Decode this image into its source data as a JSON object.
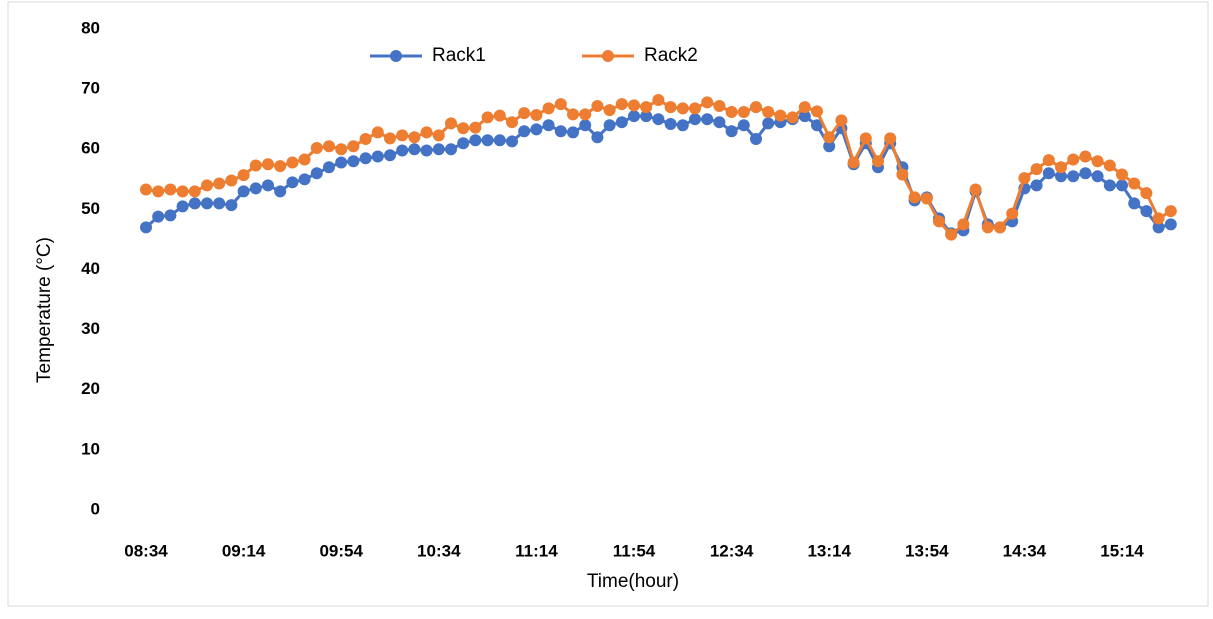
{
  "chart_data": {
    "type": "line",
    "y_label": "Temperature (°C)",
    "x_label": "Time(hour)",
    "categories": [
      "08:34",
      null,
      null,
      null,
      null,
      null,
      null,
      null,
      "09:14",
      null,
      null,
      null,
      null,
      null,
      null,
      null,
      "09:54",
      null,
      null,
      null,
      null,
      null,
      null,
      null,
      "10:34",
      null,
      null,
      null,
      null,
      null,
      null,
      null,
      "11:14",
      null,
      null,
      null,
      null,
      null,
      null,
      null,
      "11:54",
      null,
      null,
      null,
      null,
      null,
      null,
      null,
      "12:34",
      null,
      null,
      null,
      null,
      null,
      null,
      null,
      "13:14",
      null,
      null,
      null,
      null,
      null,
      null,
      null,
      "13:54",
      null,
      null,
      null,
      null,
      null,
      null,
      null,
      "14:34",
      null,
      null,
      null,
      null,
      null,
      null,
      null,
      "15:14",
      null,
      null,
      null,
      null
    ],
    "series": [
      {
        "name": "Rack1",
        "color": "#4472c4",
        "values": [
          47,
          48.8,
          49,
          50.5,
          51,
          51,
          51,
          50.7,
          53,
          53.5,
          54,
          53,
          54.5,
          55,
          56,
          57,
          57.8,
          58,
          58.5,
          58.8,
          59,
          59.8,
          60,
          59.8,
          60,
          60,
          61,
          61.5,
          61.5,
          61.5,
          61.3,
          63,
          63.3,
          64,
          63,
          62.8,
          64,
          62,
          64,
          64.5,
          65.5,
          65.5,
          65,
          64.2,
          64,
          65,
          65,
          64.5,
          63,
          64,
          61.7,
          64.3,
          64.5,
          65,
          65.5,
          64,
          60.5,
          63.5,
          57.5,
          61,
          57,
          61,
          57,
          51.5,
          52,
          48.5,
          46,
          46.5,
          53,
          47.5,
          47,
          48,
          53.5,
          54,
          56,
          55.5,
          55.5,
          56,
          55.5,
          54,
          54,
          51,
          49.7,
          47,
          47.5
        ]
      },
      {
        "name": "Rack2",
        "color": "#ed7d31",
        "values": [
          53.3,
          53,
          53.3,
          53,
          53,
          54,
          54.3,
          54.8,
          55.7,
          57.3,
          57.5,
          57.2,
          57.8,
          58.3,
          60.2,
          60.5,
          60,
          60.5,
          61.7,
          62.8,
          61.8,
          62.3,
          62,
          62.8,
          62.3,
          64.3,
          63.5,
          63.6,
          65.3,
          65.6,
          64.5,
          66,
          65.7,
          66.8,
          67.5,
          65.8,
          65.8,
          67.2,
          66.5,
          67.5,
          67.3,
          67,
          68.2,
          67,
          66.8,
          66.8,
          67.8,
          67.2,
          66.2,
          66.2,
          67,
          66.2,
          65.6,
          65.3,
          67,
          66.3,
          62,
          64.8,
          57.8,
          61.8,
          58,
          61.8,
          55.8,
          52,
          51.8,
          48,
          45.8,
          47.5,
          53.3,
          47,
          47,
          49.3,
          55.2,
          56.7,
          58.2,
          57,
          58.3,
          58.8,
          58,
          57.3,
          55.8,
          54.3,
          52.7,
          48.5,
          49.7
        ]
      }
    ],
    "ylim": [
      0,
      80
    ],
    "yticks": [
      0,
      10,
      20,
      30,
      40,
      50,
      60,
      70,
      80
    ],
    "grid": false,
    "legend": "top"
  }
}
